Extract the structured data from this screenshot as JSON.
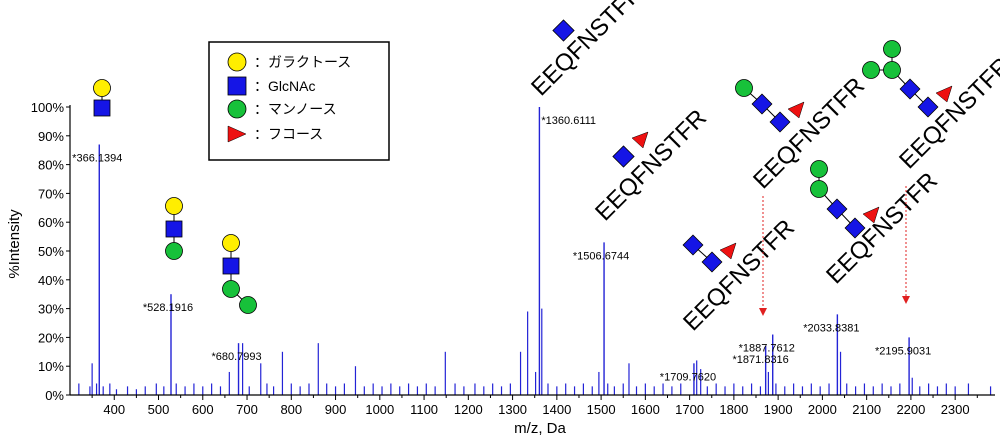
{
  "chart_data": {
    "type": "bar",
    "xlabel": "m/z, Da",
    "ylabel": "%Intensity",
    "xlim": [
      300,
      2390
    ],
    "ylim": [
      0,
      100
    ],
    "x_ticks": [
      400,
      500,
      600,
      700,
      800,
      900,
      1000,
      1100,
      1200,
      1300,
      1400,
      1500,
      1600,
      1700,
      1800,
      1900,
      2000,
      2100,
      2200,
      2300
    ],
    "y_ticks": [
      "0%",
      "10%",
      "20%",
      "30%",
      "40%",
      "50%",
      "60%",
      "70%",
      "80%",
      "90%",
      "100%"
    ],
    "bar_color": "#2323d6",
    "peaks": [
      {
        "x": 366.1394,
        "y": 87,
        "label": "*366.1394"
      },
      {
        "x": 528.1916,
        "y": 35,
        "label": "*528.1916"
      },
      {
        "x": 680.7993,
        "y": 18,
        "label": "*680.7993"
      },
      {
        "x": 1360.6111,
        "y": 100,
        "label": "*1360.6111"
      },
      {
        "x": 1506.6744,
        "y": 53,
        "label": "*1506.6744"
      },
      {
        "x": 1709.762,
        "y": 11,
        "label": "*1709.7620"
      },
      {
        "x": 1871.8316,
        "y": 17,
        "label": "*1871.8316"
      },
      {
        "x": 1887.7612,
        "y": 21,
        "label": "*1887.7612"
      },
      {
        "x": 2033.8381,
        "y": 28,
        "label": "*2033.8381"
      },
      {
        "x": 2195.9031,
        "y": 20,
        "label": "*2195.9031"
      }
    ],
    "minor_peaks": [
      {
        "x": 320,
        "y": 4
      },
      {
        "x": 345,
        "y": 3
      },
      {
        "x": 350,
        "y": 11
      },
      {
        "x": 360,
        "y": 4
      },
      {
        "x": 375,
        "y": 3
      },
      {
        "x": 390,
        "y": 4
      },
      {
        "x": 405,
        "y": 2
      },
      {
        "x": 430,
        "y": 3
      },
      {
        "x": 450,
        "y": 2
      },
      {
        "x": 470,
        "y": 3
      },
      {
        "x": 495,
        "y": 4
      },
      {
        "x": 512,
        "y": 3
      },
      {
        "x": 540,
        "y": 4
      },
      {
        "x": 560,
        "y": 3
      },
      {
        "x": 580,
        "y": 4
      },
      {
        "x": 600,
        "y": 3
      },
      {
        "x": 620,
        "y": 4
      },
      {
        "x": 640,
        "y": 3
      },
      {
        "x": 660,
        "y": 8
      },
      {
        "x": 690,
        "y": 18
      },
      {
        "x": 705,
        "y": 3
      },
      {
        "x": 731,
        "y": 11
      },
      {
        "x": 745,
        "y": 4
      },
      {
        "x": 760,
        "y": 3
      },
      {
        "x": 780,
        "y": 15
      },
      {
        "x": 800,
        "y": 4
      },
      {
        "x": 820,
        "y": 3
      },
      {
        "x": 840,
        "y": 4
      },
      {
        "x": 861,
        "y": 18
      },
      {
        "x": 880,
        "y": 4
      },
      {
        "x": 900,
        "y": 3
      },
      {
        "x": 920,
        "y": 4
      },
      {
        "x": 945,
        "y": 10
      },
      {
        "x": 965,
        "y": 3
      },
      {
        "x": 985,
        "y": 4
      },
      {
        "x": 1005,
        "y": 3
      },
      {
        "x": 1025,
        "y": 4
      },
      {
        "x": 1045,
        "y": 3
      },
      {
        "x": 1065,
        "y": 4
      },
      {
        "x": 1085,
        "y": 3
      },
      {
        "x": 1105,
        "y": 4
      },
      {
        "x": 1125,
        "y": 3
      },
      {
        "x": 1148,
        "y": 15
      },
      {
        "x": 1170,
        "y": 4
      },
      {
        "x": 1190,
        "y": 3
      },
      {
        "x": 1215,
        "y": 4
      },
      {
        "x": 1235,
        "y": 3
      },
      {
        "x": 1255,
        "y": 4
      },
      {
        "x": 1275,
        "y": 3
      },
      {
        "x": 1295,
        "y": 4
      },
      {
        "x": 1318,
        "y": 15
      },
      {
        "x": 1334,
        "y": 29
      },
      {
        "x": 1352,
        "y": 8
      },
      {
        "x": 1366,
        "y": 30
      },
      {
        "x": 1380,
        "y": 4
      },
      {
        "x": 1400,
        "y": 3
      },
      {
        "x": 1420,
        "y": 4
      },
      {
        "x": 1440,
        "y": 3
      },
      {
        "x": 1460,
        "y": 4
      },
      {
        "x": 1480,
        "y": 3
      },
      {
        "x": 1495,
        "y": 8
      },
      {
        "x": 1515,
        "y": 4
      },
      {
        "x": 1530,
        "y": 3
      },
      {
        "x": 1550,
        "y": 4
      },
      {
        "x": 1563,
        "y": 11
      },
      {
        "x": 1580,
        "y": 3
      },
      {
        "x": 1600,
        "y": 4
      },
      {
        "x": 1620,
        "y": 3
      },
      {
        "x": 1640,
        "y": 4
      },
      {
        "x": 1660,
        "y": 3
      },
      {
        "x": 1680,
        "y": 4
      },
      {
        "x": 1716,
        "y": 12
      },
      {
        "x": 1725,
        "y": 9
      },
      {
        "x": 1740,
        "y": 3
      },
      {
        "x": 1760,
        "y": 4
      },
      {
        "x": 1780,
        "y": 3
      },
      {
        "x": 1800,
        "y": 4
      },
      {
        "x": 1820,
        "y": 3
      },
      {
        "x": 1840,
        "y": 4
      },
      {
        "x": 1860,
        "y": 3
      },
      {
        "x": 1878,
        "y": 8
      },
      {
        "x": 1895,
        "y": 4
      },
      {
        "x": 1915,
        "y": 3
      },
      {
        "x": 1935,
        "y": 4
      },
      {
        "x": 1955,
        "y": 3
      },
      {
        "x": 1975,
        "y": 4
      },
      {
        "x": 1995,
        "y": 3
      },
      {
        "x": 2015,
        "y": 4
      },
      {
        "x": 2041,
        "y": 15
      },
      {
        "x": 2055,
        "y": 4
      },
      {
        "x": 2075,
        "y": 3
      },
      {
        "x": 2095,
        "y": 4
      },
      {
        "x": 2115,
        "y": 3
      },
      {
        "x": 2135,
        "y": 4
      },
      {
        "x": 2155,
        "y": 3
      },
      {
        "x": 2175,
        "y": 4
      },
      {
        "x": 2203,
        "y": 6
      },
      {
        "x": 2220,
        "y": 3
      },
      {
        "x": 2240,
        "y": 4
      },
      {
        "x": 2260,
        "y": 3
      },
      {
        "x": 2280,
        "y": 4
      },
      {
        "x": 2300,
        "y": 3
      },
      {
        "x": 2330,
        "y": 4
      },
      {
        "x": 2380,
        "y": 3
      }
    ]
  },
  "legend": {
    "items": [
      {
        "label": "：ガラクトース",
        "shape": "circle",
        "color": "#ffee00"
      },
      {
        "label": "：GlcNAc",
        "shape": "square",
        "color": "#1515e6"
      },
      {
        "label": "：マンノース",
        "shape": "circle",
        "color": "#17c13a"
      },
      {
        "label": "：フコース",
        "shape": "triangle",
        "color": "#ee1111"
      }
    ]
  },
  "annotations": {
    "peptide": "EEQFNSTFR"
  },
  "colors": {
    "galactose": "#ffee00",
    "glcnac": "#1515e6",
    "mannose": "#17c13a",
    "fucose": "#ee1111",
    "arrow": "#e02020"
  }
}
